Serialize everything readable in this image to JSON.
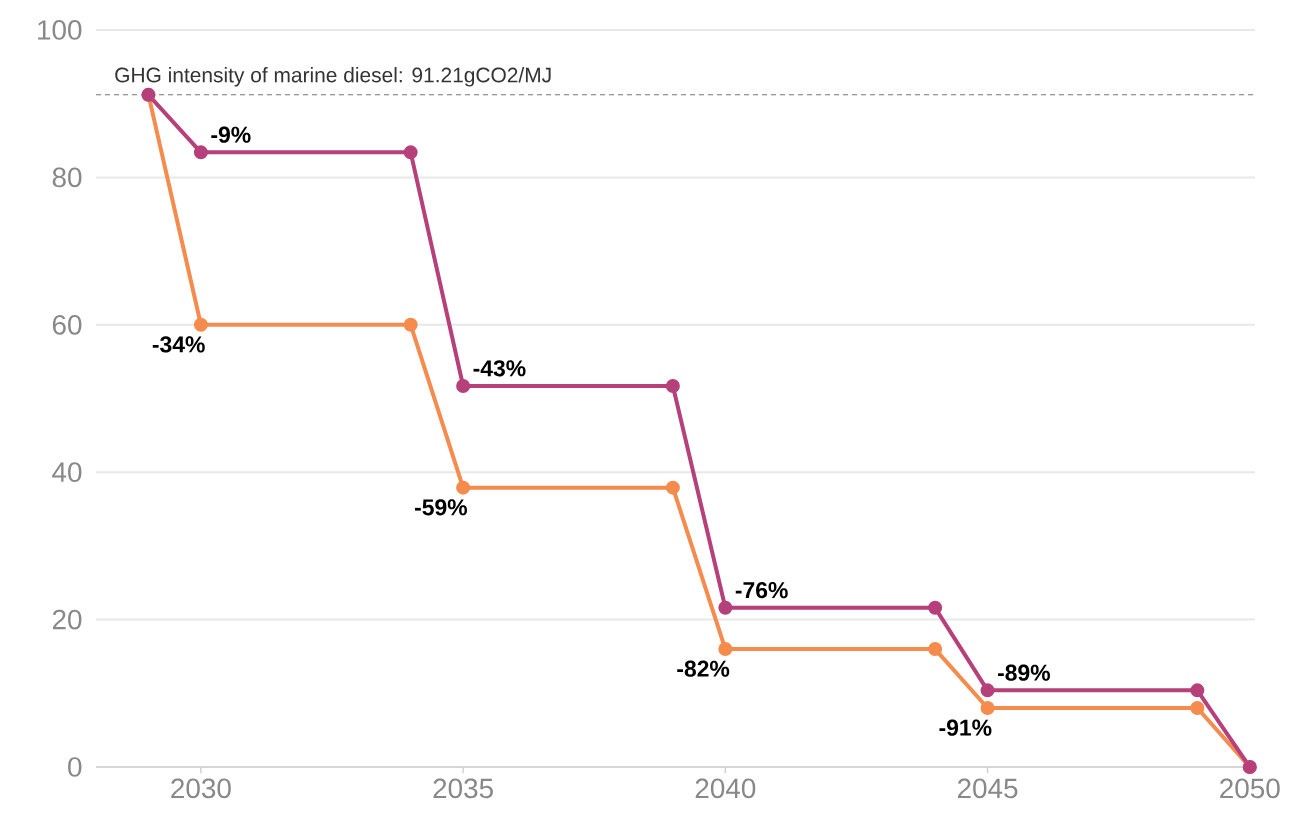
{
  "chart_data": {
    "type": "line",
    "x": [
      2029,
      2030,
      2034,
      2035,
      2039,
      2040,
      2044,
      2045,
      2049,
      2050
    ],
    "series": [
      {
        "color": "#b5407a",
        "values": [
          91.2,
          83.4,
          83.4,
          51.7,
          51.7,
          21.6,
          21.6,
          10.4,
          10.4,
          0
        ]
      },
      {
        "color": "#f58b4c",
        "values": [
          91.2,
          60.0,
          60.0,
          37.9,
          37.9,
          16.0,
          16.0,
          8.0,
          8.0,
          0
        ]
      }
    ],
    "xlim": [
      2028,
      2050.1
    ],
    "xticks": [
      2030,
      2035,
      2040,
      2045,
      2050
    ],
    "ylim": [
      0,
      100
    ],
    "yticks": [
      0,
      20,
      40,
      60,
      80,
      100
    ],
    "grid": "y",
    "marker": "circle",
    "line_style": "solid",
    "ref_lines": [
      {
        "axis": "y",
        "value": 91.21,
        "label": "GHG intensity of marine diesel: 91.21gCO2/MJ",
        "color": "#777777",
        "line_style": "dashed"
      }
    ],
    "annotations": [
      {
        "text": "-9%",
        "x": 2030,
        "y": 83.4
      },
      {
        "text": "-34%",
        "x": 2030,
        "y": 60.0
      },
      {
        "text": "-43%",
        "x": 2035,
        "y": 51.7
      },
      {
        "text": "-59%",
        "x": 2035,
        "y": 37.9
      },
      {
        "text": "-76%",
        "x": 2040,
        "y": 21.6
      },
      {
        "text": "-82%",
        "x": 2040,
        "y": 16.0
      },
      {
        "text": "-89%",
        "x": 2045,
        "y": 10.4
      },
      {
        "text": "-91%",
        "x": 2045,
        "y": 8.0
      }
    ]
  }
}
